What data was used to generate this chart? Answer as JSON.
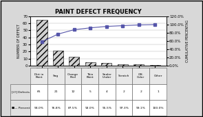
{
  "title": "PAINT DEFECT FREQUENCY",
  "categories": [
    "Dirt in\nPaint",
    "Sag",
    "Orange\nPeel",
    "Thin\nPaint",
    "Sealer\nUnder",
    "Scratch",
    "Off-\nColor",
    "Other"
  ],
  "defects": [
    65,
    21,
    12,
    5,
    4,
    2,
    2,
    1
  ],
  "percents": [
    58.0,
    76.8,
    87.5,
    92.0,
    95.5,
    97.3,
    99.1,
    100.0
  ],
  "bar_color": "#d0d0d0",
  "bar_hatch": "////",
  "line_color": "#5555aa",
  "marker": "s",
  "ylim_left": [
    0,
    70
  ],
  "ylim_right": [
    0,
    120
  ],
  "ylabel_left": "NUMBER OF DEFECT",
  "ylabel_right": "CUMULATIVE PERCENTAG",
  "yticks_left": [
    0,
    10,
    20,
    30,
    40,
    50,
    60,
    70
  ],
  "yticks_right": [
    0.0,
    20.0,
    40.0,
    60.0,
    80.0,
    100.0,
    120.0
  ],
  "ytick_right_labels": [
    "0.0%",
    "20.0%",
    "40.0%",
    "60.0%",
    "80.0%",
    "100.0%",
    "120.0%"
  ],
  "table_row1_label": "Defects",
  "table_row2_label": "Percent",
  "defect_values_str": [
    "65",
    "21",
    "12",
    "5",
    "4",
    "2",
    "2",
    "1"
  ],
  "percent_values_str": [
    "58.0%",
    "76.8%",
    "87.5%",
    "92.0%",
    "95.5%",
    "97.3%",
    "99.1%",
    "100.0%"
  ],
  "background_color": "#d8d8d8",
  "plot_bg": "#ffffff",
  "border_color": "#000000",
  "fig_width": 2.95,
  "fig_height": 1.71,
  "dpi": 100
}
